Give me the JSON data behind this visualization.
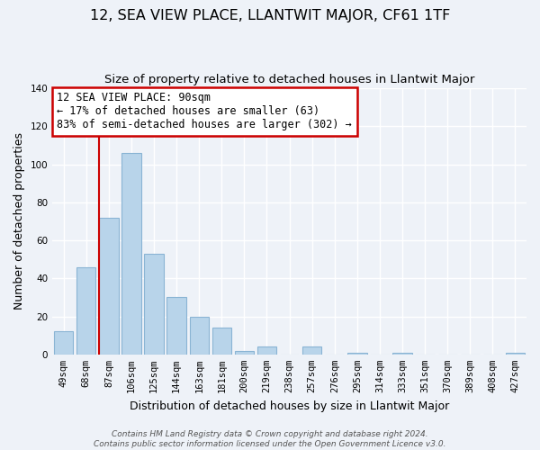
{
  "title": "12, SEA VIEW PLACE, LLANTWIT MAJOR, CF61 1TF",
  "subtitle": "Size of property relative to detached houses in Llantwit Major",
  "xlabel": "Distribution of detached houses by size in Llantwit Major",
  "ylabel": "Number of detached properties",
  "bar_color": "#b8d4ea",
  "bar_edge_color": "#8ab4d4",
  "background_color": "#eef2f8",
  "plot_bg_color": "#eef2f8",
  "annotation_box_color": "#ffffff",
  "annotation_line_color": "#cc0000",
  "categories": [
    "49sqm",
    "68sqm",
    "87sqm",
    "106sqm",
    "125sqm",
    "144sqm",
    "163sqm",
    "181sqm",
    "200sqm",
    "219sqm",
    "238sqm",
    "257sqm",
    "276sqm",
    "295sqm",
    "314sqm",
    "333sqm",
    "351sqm",
    "370sqm",
    "389sqm",
    "408sqm",
    "427sqm"
  ],
  "values": [
    12,
    46,
    72,
    106,
    53,
    30,
    20,
    14,
    2,
    4,
    0,
    4,
    0,
    1,
    0,
    1,
    0,
    0,
    0,
    0,
    1
  ],
  "ylim": [
    0,
    140
  ],
  "yticks": [
    0,
    20,
    40,
    60,
    80,
    100,
    120,
    140
  ],
  "vline_bar_index": 2,
  "vline_color": "#cc0000",
  "annotation_line1": "12 SEA VIEW PLACE: 90sqm",
  "annotation_line2": "← 17% of detached houses are smaller (63)",
  "annotation_line3": "83% of semi-detached houses are larger (302) →",
  "footer_line1": "Contains HM Land Registry data © Crown copyright and database right 2024.",
  "footer_line2": "Contains public sector information licensed under the Open Government Licence v3.0.",
  "title_fontsize": 11.5,
  "subtitle_fontsize": 9.5,
  "axis_label_fontsize": 9,
  "tick_fontsize": 7.5,
  "annotation_fontsize": 8.5,
  "footer_fontsize": 6.5
}
